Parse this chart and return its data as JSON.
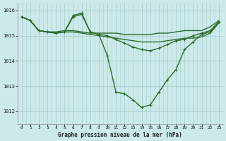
{
  "title": "Graphe pression niveau de la mer (hPa)",
  "background_color": "#cceaea",
  "line_color": "#2d6a2d",
  "grid_color": "#aacfcf",
  "xlim": [
    -0.5,
    23.5
  ],
  "ylim": [
    1011.5,
    1016.3
  ],
  "yticks": [
    1012,
    1013,
    1014,
    1015,
    1016
  ],
  "xticks": [
    0,
    1,
    2,
    3,
    4,
    5,
    6,
    7,
    8,
    9,
    10,
    11,
    12,
    13,
    14,
    15,
    16,
    17,
    18,
    19,
    20,
    21,
    22,
    23
  ],
  "series": [
    {
      "x": [
        0,
        1,
        2,
        3,
        4,
        5,
        6,
        7,
        8,
        9,
        10,
        11,
        12,
        13,
        14,
        15,
        16,
        17,
        18,
        19,
        20,
        21,
        22,
        23
      ],
      "y": [
        1015.75,
        1015.6,
        1015.2,
        1015.15,
        1015.15,
        1015.2,
        1015.2,
        1015.15,
        1015.1,
        1015.1,
        1015.1,
        1015.1,
        1015.05,
        1015.05,
        1015.05,
        1015.05,
        1015.1,
        1015.1,
        1015.15,
        1015.2,
        1015.2,
        1015.2,
        1015.35,
        1015.6
      ],
      "marker": null,
      "lw": 1.0
    },
    {
      "x": [
        0,
        1,
        2,
        3,
        4,
        5,
        6,
        7,
        8,
        9,
        10,
        11,
        12,
        13,
        14,
        15,
        16,
        17,
        18,
        19,
        20,
        21,
        22,
        23
      ],
      "y": [
        1015.75,
        1015.6,
        1015.2,
        1015.15,
        1015.1,
        1015.15,
        1015.15,
        1015.1,
        1015.05,
        1015.0,
        1014.95,
        1014.9,
        1014.85,
        1014.8,
        1014.75,
        1014.75,
        1014.75,
        1014.8,
        1014.85,
        1014.9,
        1014.9,
        1014.95,
        1015.1,
        1015.5
      ],
      "marker": null,
      "lw": 1.0
    },
    {
      "x": [
        0,
        1,
        2,
        3,
        4,
        5,
        6,
        7,
        8,
        9,
        10,
        11,
        12,
        13,
        14,
        15,
        16,
        17,
        18,
        19,
        20,
        21,
        22,
        23
      ],
      "y": [
        1015.75,
        1015.6,
        1015.2,
        1015.15,
        1015.1,
        1015.15,
        1015.75,
        1015.85,
        1015.15,
        1015.05,
        1015.0,
        1014.85,
        1014.7,
        1014.55,
        1014.45,
        1014.4,
        1014.5,
        1014.65,
        1014.8,
        1014.85,
        1015.0,
        1015.1,
        1015.2,
        1015.55
      ],
      "marker": "+",
      "lw": 1.0
    },
    {
      "x": [
        0,
        1,
        2,
        3,
        4,
        5,
        6,
        7,
        8,
        9,
        10,
        11,
        12,
        13,
        14,
        15,
        16,
        17,
        18,
        19,
        20,
        21,
        22,
        23
      ],
      "y": [
        1015.75,
        1015.6,
        1015.2,
        1015.15,
        1015.1,
        1015.15,
        1015.8,
        1015.9,
        1015.15,
        1015.05,
        1014.2,
        1012.75,
        1012.7,
        1012.45,
        1012.15,
        1012.25,
        1012.75,
        1013.25,
        1013.65,
        1014.45,
        1014.75,
        1015.05,
        1015.15,
        1015.55
      ],
      "marker": "+",
      "lw": 1.0
    }
  ]
}
